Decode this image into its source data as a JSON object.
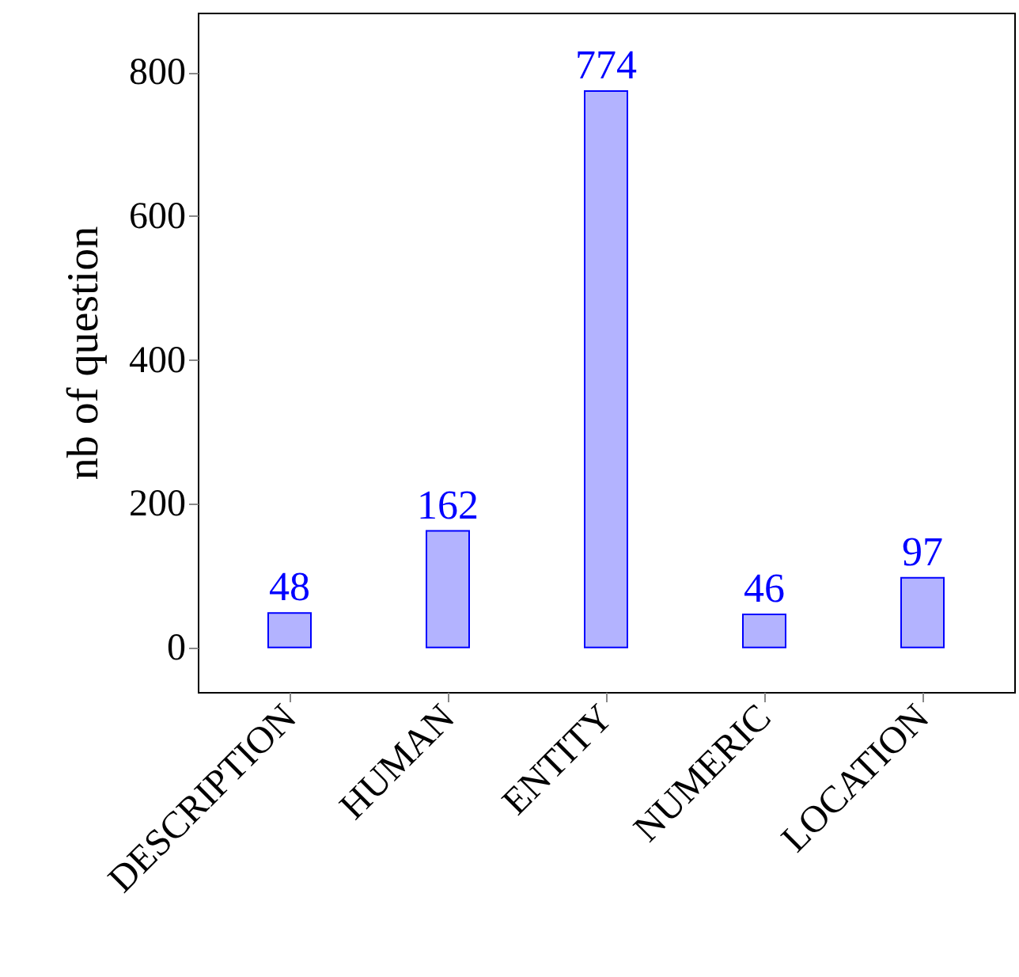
{
  "chart_data": {
    "type": "bar",
    "ylabel": "nb of question",
    "categories": [
      "DESCRIPTION",
      "HUMAN",
      "ENTITY",
      "NUMERIC",
      "LOCATION"
    ],
    "values": [
      48,
      162,
      774,
      46,
      97
    ],
    "color": "#b3b3ff",
    "ylim": [
      -62,
      883
    ],
    "yticks": [
      0,
      200,
      400,
      600,
      800
    ],
    "data_labels": true,
    "grid": false
  }
}
